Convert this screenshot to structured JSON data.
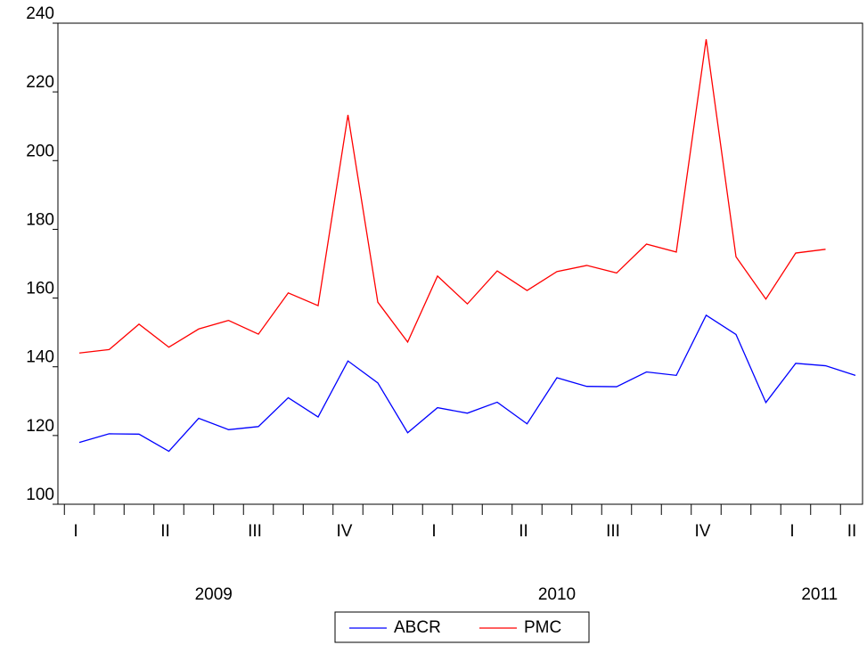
{
  "chart_data": {
    "type": "line",
    "categories": [
      "I",
      null,
      null,
      "II",
      null,
      null,
      "III",
      null,
      null,
      "IV",
      null,
      null,
      "I",
      null,
      null,
      "II",
      null,
      null,
      "III",
      null,
      null,
      "IV",
      null,
      null,
      "I",
      null,
      "II"
    ],
    "year_labels": [
      "2009",
      "2010",
      "2011"
    ],
    "series": [
      {
        "name": "ABCR",
        "color": "#0000ff",
        "values": [
          118,
          120.5,
          120.4,
          115.4,
          125,
          121.7,
          122.6,
          131,
          125.4,
          141.7,
          135.3,
          120.8,
          128.1,
          126.5,
          129.7,
          123.4,
          136.8,
          134.3,
          134.2,
          138.5,
          137.5,
          155,
          149.4,
          129.6,
          141,
          140.3,
          137.5
        ]
      },
      {
        "name": "PMC",
        "color": "#ff0000",
        "values": [
          144,
          145,
          152.4,
          145.7,
          151,
          153.5,
          149.5,
          161.5,
          157.8,
          213.3,
          158.8,
          147.2,
          166.4,
          158.3,
          167.9,
          162.2,
          167.7,
          169.5,
          167.3,
          175.7,
          173.4,
          235.3,
          172,
          159.7,
          173.1,
          174.2,
          null
        ]
      }
    ],
    "ylim": [
      100,
      240
    ],
    "yticks": [
      100,
      120,
      140,
      160,
      180,
      200,
      220,
      240
    ]
  }
}
